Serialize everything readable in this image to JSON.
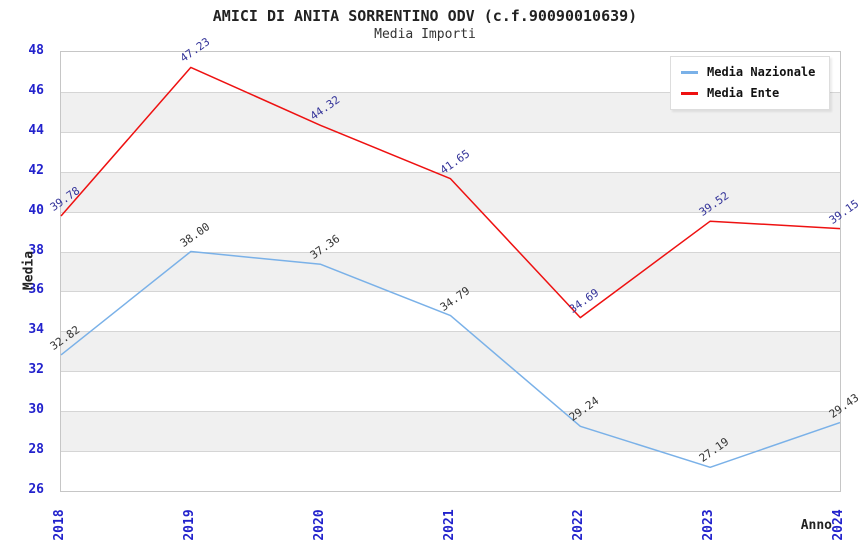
{
  "header": {
    "title": "AMICI DI ANITA SORRENTINO ODV (c.f.90090010639)",
    "subtitle": "Media Importi"
  },
  "chart_data": {
    "type": "line",
    "title": "AMICI DI ANITA SORRENTINO ODV (c.f.90090010639)",
    "subtitle": "Media Importi",
    "xlabel": "Anno",
    "ylabel": "Media",
    "categories": [
      "2018",
      "2019",
      "2020",
      "2021",
      "2022",
      "2023",
      "2024"
    ],
    "series": [
      {
        "name": "Media Nazionale",
        "color": "#7ab1e8",
        "label_color": "#333333",
        "values": [
          32.82,
          38.0,
          37.36,
          34.79,
          29.24,
          27.19,
          29.43
        ]
      },
      {
        "name": "Media Ente",
        "color": "#ee1111",
        "label_color": "#333399",
        "values": [
          39.78,
          47.23,
          44.32,
          41.65,
          34.69,
          39.52,
          39.15
        ]
      }
    ],
    "ylim": [
      26,
      48
    ],
    "y_tick_step": 2,
    "grid": "horizontal",
    "legend_position": "top-right",
    "value_label_decimals": 2,
    "colors": {
      "tick_label": "#2222cc",
      "band_alt": "#f0f0f0",
      "band_main": "#ffffff",
      "gridline": "#d5d5d5",
      "plot_border": "#c6c6c6",
      "axis_title": "#222222",
      "title": "#222222",
      "subtitle": "#333333"
    }
  }
}
